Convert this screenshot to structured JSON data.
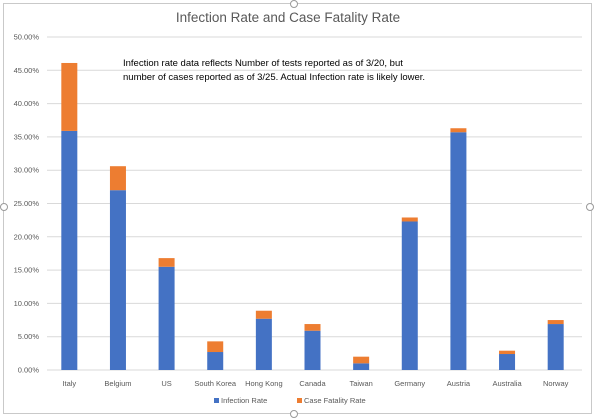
{
  "chart_data": {
    "type": "bar",
    "stacked": true,
    "title": "Infection Rate and Case Fatality Rate",
    "categories": [
      "Italy",
      "Belgium",
      "US",
      "South Korea",
      "Hong Kong",
      "Canada",
      "Taiwan",
      "Germany",
      "Austria",
      "Australia",
      "Norway"
    ],
    "series": [
      {
        "name": "Infection Rate",
        "color": "#4472C4",
        "values": [
          35.9,
          27.0,
          15.5,
          2.7,
          7.7,
          5.9,
          1.0,
          22.3,
          35.7,
          2.4,
          6.9
        ]
      },
      {
        "name": "Case Fatality Rate",
        "color": "#ED7D31",
        "values": [
          10.2,
          3.6,
          1.3,
          1.6,
          1.2,
          1.0,
          1.0,
          0.6,
          0.6,
          0.5,
          0.6
        ]
      }
    ],
    "ylim": [
      0,
      50
    ],
    "y_ticks": [
      "0.00%",
      "5.00%",
      "10.00%",
      "15.00%",
      "20.00%",
      "25.00%",
      "30.00%",
      "35.00%",
      "40.00%",
      "45.00%",
      "50.00%"
    ],
    "grid": true,
    "legend_position": "bottom",
    "annotation": [
      "Infection rate data reflects Number of tests reported as of 3/20, but",
      "number of cases reported as of 3/25.  Actual Infection rate is likely lower."
    ]
  }
}
